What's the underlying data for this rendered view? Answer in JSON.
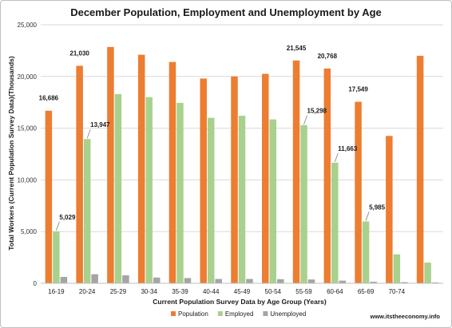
{
  "chart_data": {
    "type": "bar",
    "title": "December Population, Employment and Unemployment by Age",
    "xlabel": "Current Population Survey Data by Age Group (Years)",
    "ylabel": "Total Workers (Current Population Survey Data)(Thousands)",
    "ylim": [
      0,
      25000
    ],
    "yticks": [
      "0",
      "5,000",
      "10,000",
      "15,000",
      "20,000",
      "25,000"
    ],
    "ytick_values": [
      0,
      5000,
      10000,
      15000,
      20000,
      25000
    ],
    "grid": true,
    "legend_position": "bottom-center",
    "categories": [
      "16-19",
      "20-24",
      "25-29",
      "30-34",
      "35-39",
      "40-44",
      "45-49",
      "50-54",
      "55-59",
      "60-64",
      "65-69",
      "70-74",
      ""
    ],
    "series": [
      {
        "name": "Population",
        "color": "#ed7d31",
        "values": [
          16686,
          21030,
          22850,
          22100,
          21400,
          19800,
          20000,
          20250,
          21545,
          20768,
          17549,
          14250,
          22000
        ]
      },
      {
        "name": "Employed",
        "color": "#a9d18e",
        "values": [
          5029,
          13947,
          18300,
          18000,
          17450,
          16000,
          16200,
          15850,
          15298,
          11663,
          5985,
          2800,
          2000
        ]
      },
      {
        "name": "Unemployed",
        "color": "#a5a5a5",
        "values": [
          620,
          880,
          780,
          560,
          510,
          420,
          420,
          400,
          370,
          260,
          150,
          110,
          80
        ]
      }
    ],
    "data_labels": [
      {
        "text": "16,686",
        "series": 0,
        "index": 0
      },
      {
        "text": "21,030",
        "series": 0,
        "index": 1
      },
      {
        "text": "21,545",
        "series": 0,
        "index": 8
      },
      {
        "text": "20,768",
        "series": 0,
        "index": 9
      },
      {
        "text": "17,549",
        "series": 0,
        "index": 10
      },
      {
        "text": "5,029",
        "series": 1,
        "index": 0
      },
      {
        "text": "13,947",
        "series": 1,
        "index": 1
      },
      {
        "text": "15,298",
        "series": 1,
        "index": 8
      },
      {
        "text": "11,663",
        "series": 1,
        "index": 9
      },
      {
        "text": "5,985",
        "series": 1,
        "index": 10
      }
    ],
    "source_note": "www.itstheeconomy.info"
  }
}
